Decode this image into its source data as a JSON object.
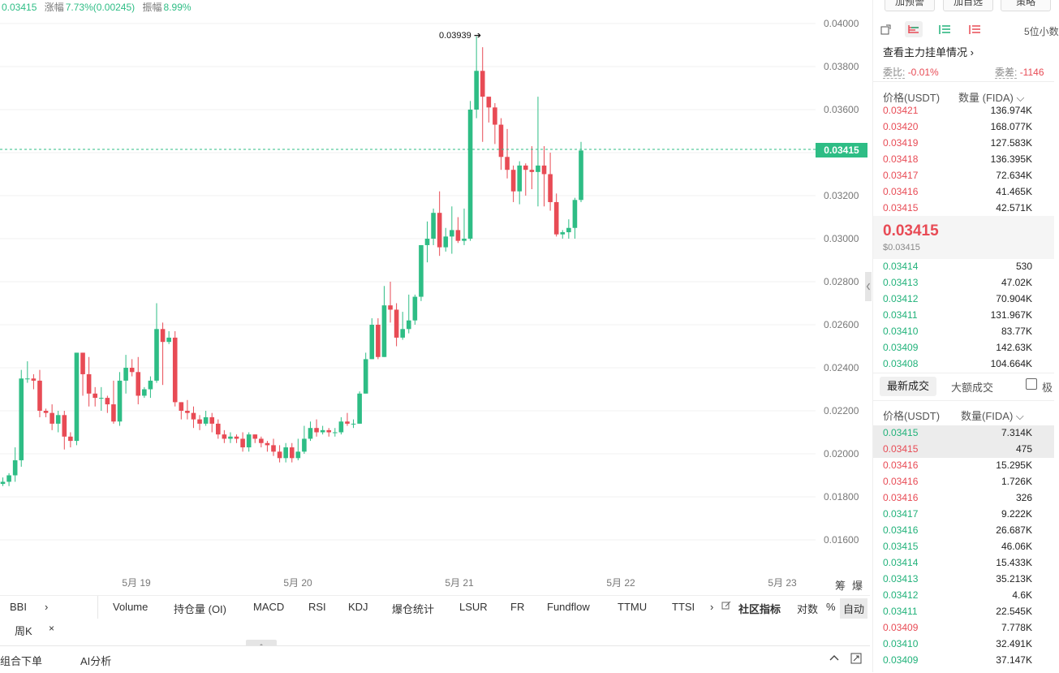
{
  "topstats": {
    "price": "0.03415",
    "change_label": "涨幅",
    "change_value": "7.73%(0.00245)",
    "amp_label": "振幅",
    "amp_value": "8.99%"
  },
  "chart": {
    "high_label": "0.03939",
    "last_price_tag": "0.03415",
    "y_ticks": [
      "0.04000",
      "0.03800",
      "0.03600",
      "0.03400",
      "0.03200",
      "0.03000",
      "0.02800",
      "0.02600",
      "0.02400",
      "0.02200",
      "0.02000",
      "0.01800",
      "0.01600"
    ],
    "x_ticks": [
      "5月 19",
      "5月 20",
      "5月 21",
      "5月 22",
      "5月 23"
    ],
    "corner_chips": [
      "筹",
      "爆"
    ],
    "colors": {
      "up": "#2ebd85",
      "down": "#e84b55",
      "grid": "#f2f2f2"
    }
  },
  "chart_data": {
    "type": "candlestick",
    "title": "",
    "xlabel": "",
    "ylabel": "",
    "ylim": [
      0.015,
      0.041
    ],
    "x_range": [
      "5月 19",
      "5月 23"
    ],
    "last_price": 0.03415,
    "high_marker": 0.03939,
    "candles": [
      [
        0.0186,
        0.0187,
        0.0185,
        0.0189
      ],
      [
        0.0187,
        0.019,
        0.0185,
        0.0191
      ],
      [
        0.019,
        0.0197,
        0.0187,
        0.0203
      ],
      [
        0.0197,
        0.0235,
        0.0194,
        0.0239
      ],
      [
        0.0235,
        0.0235,
        0.0233,
        0.0243
      ],
      [
        0.0235,
        0.0234,
        0.023,
        0.0237
      ],
      [
        0.0234,
        0.022,
        0.0217,
        0.0239
      ],
      [
        0.022,
        0.0219,
        0.0217,
        0.0221
      ],
      [
        0.0219,
        0.0214,
        0.0211,
        0.0223
      ],
      [
        0.0214,
        0.0218,
        0.021,
        0.022
      ],
      [
        0.0218,
        0.0208,
        0.0202,
        0.022
      ],
      [
        0.0208,
        0.0206,
        0.0203,
        0.021
      ],
      [
        0.0206,
        0.0247,
        0.0204,
        0.0247
      ],
      [
        0.0247,
        0.0237,
        0.0227,
        0.0247
      ],
      [
        0.0237,
        0.0228,
        0.0222,
        0.0245
      ],
      [
        0.0228,
        0.0226,
        0.0222,
        0.0231
      ],
      [
        0.0226,
        0.0226,
        0.022,
        0.0231
      ],
      [
        0.0226,
        0.0223,
        0.0219,
        0.0227
      ],
      [
        0.0223,
        0.0215,
        0.0214,
        0.0234
      ],
      [
        0.0215,
        0.0234,
        0.0213,
        0.0238
      ],
      [
        0.0234,
        0.024,
        0.0228,
        0.0246
      ],
      [
        0.024,
        0.0238,
        0.0236,
        0.0244
      ],
      [
        0.0238,
        0.0227,
        0.0223,
        0.0245
      ],
      [
        0.0227,
        0.023,
        0.0226,
        0.0231
      ],
      [
        0.023,
        0.0234,
        0.0226,
        0.0236
      ],
      [
        0.0234,
        0.0258,
        0.0233,
        0.027
      ],
      [
        0.0258,
        0.0252,
        0.0232,
        0.0261
      ],
      [
        0.0252,
        0.0254,
        0.0251,
        0.0257
      ],
      [
        0.0254,
        0.0224,
        0.0222,
        0.0257
      ],
      [
        0.0224,
        0.022,
        0.0216,
        0.0224
      ],
      [
        0.022,
        0.0219,
        0.0216,
        0.0225
      ],
      [
        0.0219,
        0.0216,
        0.0212,
        0.0222
      ],
      [
        0.0216,
        0.0214,
        0.0211,
        0.0218
      ],
      [
        0.0214,
        0.0217,
        0.0213,
        0.022
      ],
      [
        0.0217,
        0.0214,
        0.021,
        0.0219
      ],
      [
        0.0214,
        0.0209,
        0.0207,
        0.0216
      ],
      [
        0.0209,
        0.0207,
        0.0205,
        0.0211
      ],
      [
        0.0207,
        0.0208,
        0.0205,
        0.021
      ],
      [
        0.0208,
        0.0207,
        0.0205,
        0.0209
      ],
      [
        0.0207,
        0.0203,
        0.0201,
        0.021
      ],
      [
        0.0203,
        0.0209,
        0.0201,
        0.021
      ],
      [
        0.0209,
        0.0207,
        0.0205,
        0.0209
      ],
      [
        0.0207,
        0.0205,
        0.0203,
        0.0208
      ],
      [
        0.0205,
        0.0204,
        0.0201,
        0.0206
      ],
      [
        0.0204,
        0.0201,
        0.0199,
        0.0207
      ],
      [
        0.0201,
        0.0198,
        0.0196,
        0.0204
      ],
      [
        0.0198,
        0.0203,
        0.0196,
        0.0205
      ],
      [
        0.0203,
        0.0198,
        0.0196,
        0.0205
      ],
      [
        0.0198,
        0.0201,
        0.0197,
        0.0207
      ],
      [
        0.0201,
        0.0207,
        0.02,
        0.0213
      ],
      [
        0.0207,
        0.0212,
        0.0206,
        0.0215
      ],
      [
        0.0212,
        0.021,
        0.0208,
        0.0216
      ],
      [
        0.021,
        0.0211,
        0.0209,
        0.0213
      ],
      [
        0.0211,
        0.021,
        0.0208,
        0.0212
      ],
      [
        0.021,
        0.021,
        0.0208,
        0.0212
      ],
      [
        0.021,
        0.0215,
        0.0209,
        0.0217
      ],
      [
        0.0215,
        0.0214,
        0.0213,
        0.0219
      ],
      [
        0.0214,
        0.0214,
        0.0212,
        0.0216
      ],
      [
        0.0214,
        0.0228,
        0.0214,
        0.0229
      ],
      [
        0.0228,
        0.0244,
        0.0228,
        0.0247
      ],
      [
        0.0244,
        0.026,
        0.0244,
        0.0263
      ],
      [
        0.026,
        0.0245,
        0.0244,
        0.0263
      ],
      [
        0.0245,
        0.0269,
        0.0245,
        0.0278
      ],
      [
        0.0269,
        0.0267,
        0.0261,
        0.028
      ],
      [
        0.0267,
        0.0254,
        0.025,
        0.027
      ],
      [
        0.0254,
        0.0258,
        0.0253,
        0.0266
      ],
      [
        0.0258,
        0.0262,
        0.0256,
        0.0274
      ],
      [
        0.0262,
        0.0273,
        0.026,
        0.0274
      ],
      [
        0.0273,
        0.0297,
        0.0271,
        0.0297
      ],
      [
        0.0297,
        0.03,
        0.0289,
        0.0308
      ],
      [
        0.03,
        0.0312,
        0.0297,
        0.0314
      ],
      [
        0.0312,
        0.0296,
        0.0292,
        0.0322
      ],
      [
        0.0296,
        0.0301,
        0.0294,
        0.0305
      ],
      [
        0.0301,
        0.0304,
        0.0293,
        0.0315
      ],
      [
        0.0304,
        0.0299,
        0.0298,
        0.031
      ],
      [
        0.0299,
        0.03,
        0.0297,
        0.0314
      ],
      [
        0.03,
        0.036,
        0.0299,
        0.0364
      ],
      [
        0.036,
        0.0378,
        0.0356,
        0.0394
      ],
      [
        0.0378,
        0.0366,
        0.0345,
        0.0389
      ],
      [
        0.0366,
        0.0361,
        0.0354,
        0.0365
      ],
      [
        0.0361,
        0.0353,
        0.0344,
        0.0363
      ],
      [
        0.0353,
        0.0338,
        0.0332,
        0.0356
      ],
      [
        0.0338,
        0.0332,
        0.0328,
        0.0351
      ],
      [
        0.0332,
        0.0322,
        0.0317,
        0.0334
      ],
      [
        0.0322,
        0.0334,
        0.0316,
        0.0336
      ],
      [
        0.0334,
        0.0332,
        0.032,
        0.0335
      ],
      [
        0.0332,
        0.0331,
        0.0323,
        0.0343
      ],
      [
        0.0331,
        0.0334,
        0.0315,
        0.0366
      ],
      [
        0.0334,
        0.033,
        0.0315,
        0.0343
      ],
      [
        0.033,
        0.0317,
        0.0313,
        0.034
      ],
      [
        0.0317,
        0.0302,
        0.0301,
        0.0321
      ],
      [
        0.0302,
        0.0303,
        0.03,
        0.0304
      ],
      [
        0.0303,
        0.0305,
        0.03,
        0.0309
      ],
      [
        0.0305,
        0.0318,
        0.03,
        0.0319
      ],
      [
        0.0318,
        0.0341,
        0.0317,
        0.0345
      ]
    ]
  },
  "indicators": {
    "bbi": "BBI",
    "items": [
      "Volume",
      "持仓量 (OI)",
      "MACD",
      "RSI",
      "KDJ",
      "爆仓统计",
      "LSUR",
      "FR",
      "Fundflow",
      "TTMU",
      "TTSI"
    ],
    "community": "社区指标",
    "log": "对数",
    "percent": "%",
    "auto": "自动"
  },
  "period": {
    "tag": "周K"
  },
  "bottom": {
    "combo_order": "组合下单",
    "ai_analysis": "AI分析"
  },
  "panel": {
    "top_buttons": [
      "加预警",
      "加自选",
      "策略"
    ],
    "decimals": "5位小数",
    "main_orders": "查看主力挂单情况",
    "weibi_label": "委比:",
    "weibi_value": "-0.01%",
    "weicha_label": "委差:",
    "weicha_value": "-1146",
    "book_header_price": "价格(USDT)",
    "book_header_qty": "数量 (FIDA)",
    "asks": [
      {
        "p": "0.03421",
        "q": "136.974K"
      },
      {
        "p": "0.03420",
        "q": "168.077K"
      },
      {
        "p": "0.03419",
        "q": "127.583K"
      },
      {
        "p": "0.03418",
        "q": "136.395K"
      },
      {
        "p": "0.03417",
        "q": "72.634K"
      },
      {
        "p": "0.03416",
        "q": "41.465K"
      },
      {
        "p": "0.03415",
        "q": "42.571K"
      }
    ],
    "mid_price": "0.03415",
    "mid_usd": "$0.03415",
    "bids": [
      {
        "p": "0.03414",
        "q": "530"
      },
      {
        "p": "0.03413",
        "q": "47.02K"
      },
      {
        "p": "0.03412",
        "q": "70.904K"
      },
      {
        "p": "0.03411",
        "q": "131.967K"
      },
      {
        "p": "0.03410",
        "q": "83.77K"
      },
      {
        "p": "0.03409",
        "q": "142.63K"
      },
      {
        "p": "0.03408",
        "q": "104.664K"
      }
    ],
    "trades_tab_latest": "最新成交",
    "trades_tab_large": "大额成交",
    "trades_checkbox": "极",
    "trades_header_price": "价格(USDT)",
    "trades_header_qty": "数量(FIDA)",
    "trades": [
      {
        "p": "0.03415",
        "q": "7.314K",
        "side": "buy"
      },
      {
        "p": "0.03415",
        "q": "475",
        "side": "sell"
      },
      {
        "p": "0.03416",
        "q": "15.295K",
        "side": "sell"
      },
      {
        "p": "0.03416",
        "q": "1.726K",
        "side": "sell"
      },
      {
        "p": "0.03416",
        "q": "326",
        "side": "sell"
      },
      {
        "p": "0.03417",
        "q": "9.222K",
        "side": "buy"
      },
      {
        "p": "0.03416",
        "q": "26.687K",
        "side": "buy"
      },
      {
        "p": "0.03415",
        "q": "46.06K",
        "side": "buy"
      },
      {
        "p": "0.03414",
        "q": "15.433K",
        "side": "buy"
      },
      {
        "p": "0.03413",
        "q": "35.213K",
        "side": "buy"
      },
      {
        "p": "0.03412",
        "q": "4.6K",
        "side": "buy"
      },
      {
        "p": "0.03411",
        "q": "22.545K",
        "side": "buy"
      },
      {
        "p": "0.03409",
        "q": "7.778K",
        "side": "sell"
      },
      {
        "p": "0.03410",
        "q": "32.491K",
        "side": "buy"
      },
      {
        "p": "0.03409",
        "q": "37.147K",
        "side": "buy"
      }
    ]
  }
}
